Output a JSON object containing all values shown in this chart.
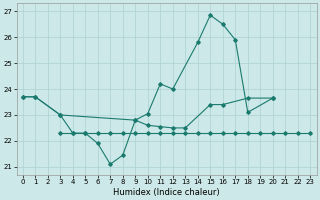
{
  "background_color": "#cde8e8",
  "grid_color": "#add0d0",
  "line_color": "#1a7a6e",
  "xlabel": "Humidex (Indice chaleur)",
  "ylabel_ticks": [
    21,
    22,
    23,
    24,
    25,
    26,
    27
  ],
  "xlim": [
    -0.5,
    23.5
  ],
  "ylim": [
    20.7,
    27.3
  ],
  "xticks": [
    0,
    1,
    2,
    3,
    4,
    5,
    6,
    7,
    8,
    9,
    10,
    11,
    12,
    13,
    14,
    15,
    16,
    17,
    18,
    19,
    20,
    21,
    22,
    23
  ],
  "line1_x": [
    0,
    1,
    3,
    9,
    10,
    11,
    12,
    13,
    15,
    16,
    18,
    20
  ],
  "line1_y": [
    23.7,
    23.7,
    23.0,
    22.8,
    22.6,
    22.55,
    22.5,
    22.5,
    23.4,
    23.4,
    23.65,
    23.65
  ],
  "line2_x": [
    0,
    1,
    3,
    4,
    5,
    6,
    7,
    8,
    9,
    10,
    11,
    12,
    14,
    15,
    16,
    17,
    18,
    20
  ],
  "line2_y": [
    23.7,
    23.7,
    23.0,
    22.3,
    22.3,
    21.9,
    21.1,
    21.45,
    22.8,
    23.05,
    24.2,
    24.0,
    25.8,
    26.85,
    26.5,
    25.9,
    23.1,
    23.65
  ],
  "line3_x": [
    3,
    4,
    5,
    6,
    7,
    8,
    9,
    10,
    11,
    12,
    13,
    14,
    15,
    16,
    17,
    18,
    19,
    20,
    21,
    22,
    23
  ],
  "line3_y": [
    22.3,
    22.3,
    22.3,
    22.3,
    22.3,
    22.3,
    22.3,
    22.3,
    22.3,
    22.3,
    22.3,
    22.3,
    22.3,
    22.3,
    22.3,
    22.3,
    22.3,
    22.3,
    22.3,
    22.3,
    22.3
  ],
  "xlabel_fontsize": 6,
  "tick_fontsize": 5
}
